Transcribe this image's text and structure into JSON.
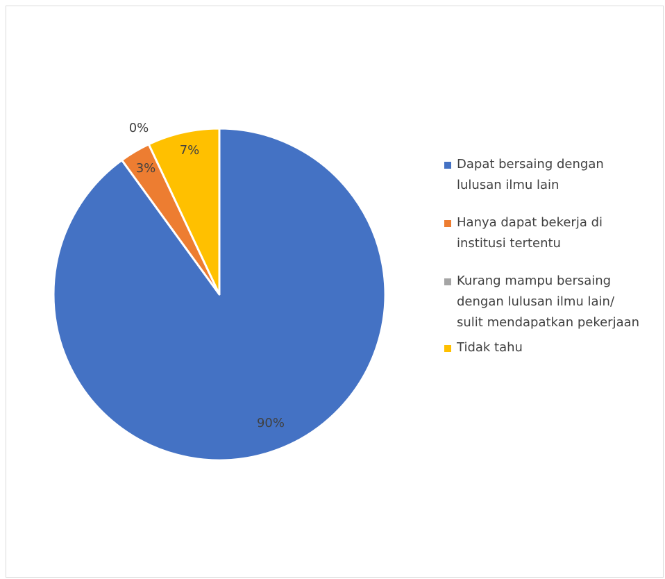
{
  "chart_data": {
    "type": "pie",
    "categories": [
      "Dapat bersaing dengan lulusan ilmu lain",
      "Hanya dapat bekerja di institusi tertentu",
      "Kurang mampu bersaing dengan lulusan ilmu lain/ sulit mendapatkan pekerjaan",
      "Tidak tahu"
    ],
    "values": [
      90,
      3,
      0,
      7
    ],
    "data_labels": [
      "90%",
      "3%",
      "0%",
      "7%"
    ],
    "colors": [
      "#4472C4",
      "#ED7D31",
      "#A5A5A5",
      "#FFC000"
    ],
    "legend_position": "right",
    "title": ""
  },
  "legend": {
    "items": [
      {
        "label_lines": [
          "Dapat bersaing dengan",
          "lulusan ilmu lain"
        ],
        "color": "#4472C4"
      },
      {
        "label_lines": [
          "Hanya dapat bekerja di",
          "institusi tertentu"
        ],
        "color": "#ED7D31"
      },
      {
        "label_lines": [
          "Kurang mampu bersaing",
          "dengan lulusan ilmu lain/",
          "sulit mendapatkan pekerjaan"
        ],
        "color": "#A5A5A5"
      },
      {
        "label_lines": [
          "Tidak tahu"
        ],
        "color": "#FFC000"
      }
    ]
  }
}
